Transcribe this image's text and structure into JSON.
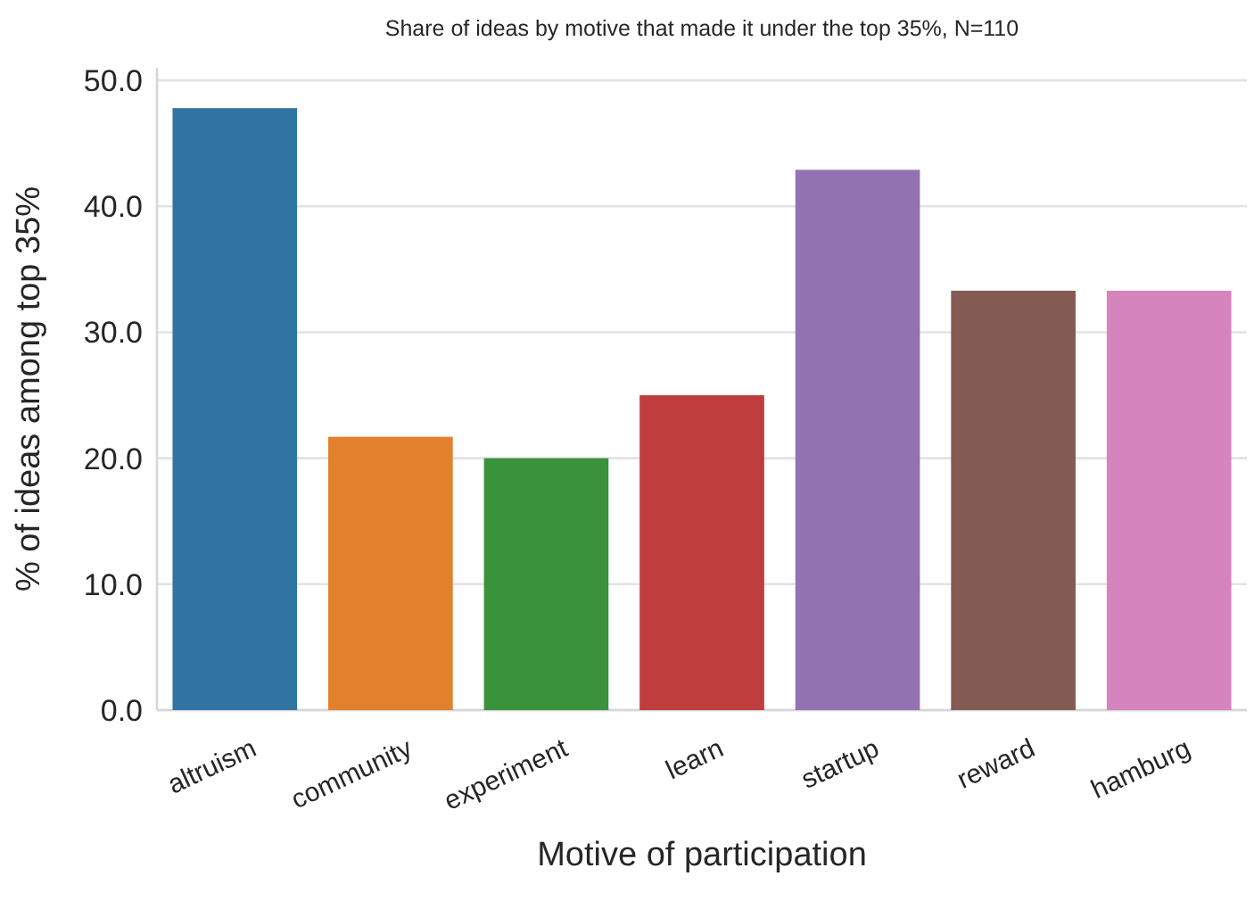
{
  "chart_data": {
    "type": "bar",
    "title": "Share of ideas by motive that made it under the top 35%, N=110",
    "xlabel": "Motive of participation",
    "ylabel": "% of ideas among top 35%",
    "categories": [
      "altruism",
      "community",
      "experiment",
      "learn",
      "startup",
      "reward",
      "hamburg"
    ],
    "values": [
      47.8,
      21.7,
      20.0,
      25.0,
      42.9,
      33.3,
      33.3
    ],
    "colors": [
      "#3274a1",
      "#e1812c",
      "#3a923a",
      "#c03d3e",
      "#9372b2",
      "#845b53",
      "#d684bd"
    ],
    "ylim": [
      0,
      51
    ],
    "yticks": [
      {
        "value": 0,
        "label": "0.0"
      },
      {
        "value": 10,
        "label": "10.0"
      },
      {
        "value": 20,
        "label": "20.0"
      },
      {
        "value": 30,
        "label": "30.0"
      },
      {
        "value": 40,
        "label": "40.0"
      },
      {
        "value": 50,
        "label": "50.0"
      }
    ],
    "grid": "y"
  }
}
